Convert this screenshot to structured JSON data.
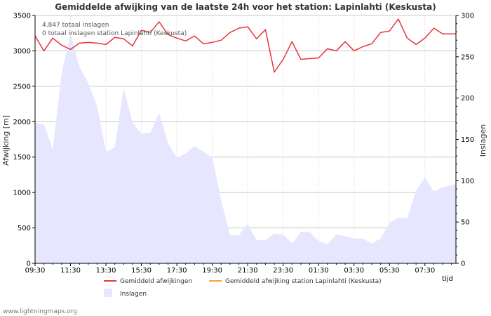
{
  "chart_data": {
    "type": "line",
    "title": "Gemiddelde afwijking van de laatste 24h voor het station: Lapinlahti (Keskusta)",
    "ylabel_left": "Afwijking  [m]",
    "ylabel_right": "Inslagen",
    "xlabel": "tijd",
    "ylim_left": [
      0,
      3500
    ],
    "ylim_right": [
      0,
      300
    ],
    "yticks_left": [
      0,
      500,
      1000,
      1500,
      2000,
      2500,
      3000,
      3500
    ],
    "yticks_right": [
      0,
      50,
      100,
      150,
      200,
      250,
      300
    ],
    "x_range": [
      0,
      47.5
    ],
    "xticks": [
      {
        "pos": 0,
        "label": "09:30"
      },
      {
        "pos": 4,
        "label": "11:30"
      },
      {
        "pos": 8,
        "label": "13:30"
      },
      {
        "pos": 12,
        "label": "15:30"
      },
      {
        "pos": 16,
        "label": "17:30"
      },
      {
        "pos": 20,
        "label": "19:30"
      },
      {
        "pos": 24,
        "label": "21:30"
      },
      {
        "pos": 28,
        "label": "23:30"
      },
      {
        "pos": 32,
        "label": "01:30"
      },
      {
        "pos": 36,
        "label": "03:30"
      },
      {
        "pos": 40,
        "label": "05:30"
      },
      {
        "pos": 44,
        "label": "07:30"
      }
    ],
    "annotations": [
      "4.847 totaal inslagen",
      "0 totaal inslagen station Lapinlahti (Keskusta)"
    ],
    "series": [
      {
        "name": "Gemiddeld afwijkingen",
        "type": "line",
        "color": "#e8353b",
        "axis": "left",
        "x": [
          0,
          1,
          2,
          3,
          4,
          5,
          6,
          7,
          8,
          9,
          10,
          11,
          12,
          13,
          14,
          15,
          16,
          17,
          18,
          19,
          20,
          21,
          22,
          23,
          24,
          25,
          26,
          27,
          28,
          29,
          30,
          31,
          32,
          33,
          34,
          35,
          36,
          37,
          38,
          39,
          40,
          41,
          42,
          43,
          44,
          45,
          46,
          47.5
        ],
        "values": [
          3210,
          3000,
          3180,
          3080,
          3020,
          3110,
          3120,
          3110,
          3090,
          3190,
          3170,
          3070,
          3290,
          3260,
          3410,
          3230,
          3180,
          3140,
          3210,
          3100,
          3120,
          3150,
          3260,
          3320,
          3340,
          3170,
          3300,
          2700,
          2880,
          3130,
          2880,
          2890,
          2900,
          3030,
          3000,
          3130,
          3000,
          3060,
          3100,
          3260,
          3280,
          3450,
          3180,
          3090,
          3180,
          3320,
          3240,
          3240
        ]
      },
      {
        "name": "Gemiddeld afwijking station Lapinlahti (Keskusta)",
        "type": "line",
        "color": "#f5a041",
        "axis": "left",
        "x": [],
        "values": []
      },
      {
        "name": "Inslagen",
        "type": "area",
        "color": "#e6e6ff",
        "axis": "right",
        "x": [
          0,
          1,
          2,
          3,
          4,
          5,
          6,
          7,
          8,
          9,
          10,
          11,
          12,
          13,
          14,
          15,
          16,
          17,
          18,
          19,
          20,
          21,
          22,
          23,
          24,
          25,
          26,
          27,
          28,
          29,
          30,
          31,
          32,
          33,
          34,
          35,
          36,
          37,
          38,
          39,
          40,
          41,
          42,
          43,
          44,
          45,
          46,
          47.5
        ],
        "values": [
          170,
          168,
          138,
          230,
          278,
          238,
          218,
          190,
          135,
          140,
          212,
          170,
          157,
          158,
          182,
          145,
          128,
          133,
          142,
          135,
          128,
          77,
          34,
          34,
          48,
          28,
          28,
          36,
          35,
          24,
          38,
          38,
          27,
          23,
          35,
          33,
          30,
          30,
          24,
          30,
          49,
          55,
          55,
          88,
          104,
          87,
          92,
          96
        ]
      }
    ],
    "legend": [
      "Gemiddeld afwijkingen",
      "Gemiddeld afwijking station Lapinlahti (Keskusta)",
      "Inslagen"
    ],
    "grid": true
  },
  "credit": "www.lightningmaps.org"
}
